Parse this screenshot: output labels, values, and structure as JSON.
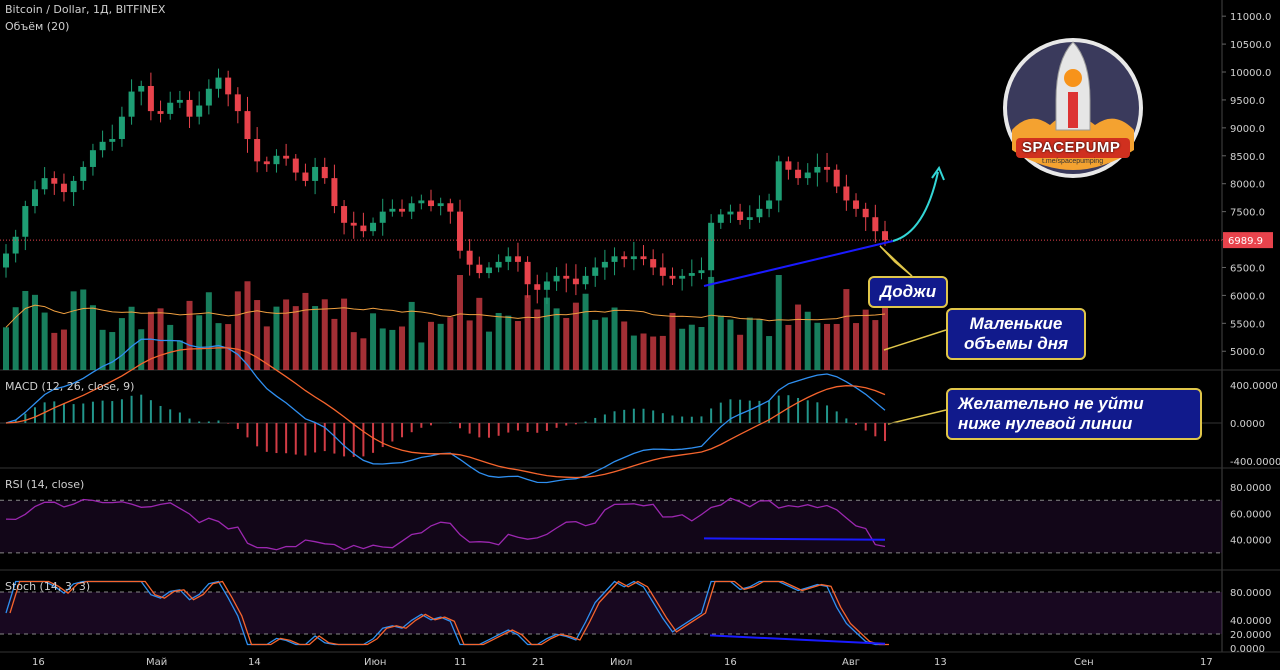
{
  "header": {
    "symbol": "Bitcoin / Dollar, 1Д, BITFINEX",
    "volume_label": "Объём (20)",
    "macd_label": "MACD (12, 26, close, 9)",
    "rsi_label": "RSI (14, close)",
    "stoch_label": "Stoch (14, 3, 3)"
  },
  "price_axis": {
    "ticks": [
      "11000.0",
      "10500.0",
      "10000.0",
      "9500.0",
      "9000.0",
      "8500.0",
      "8000.0",
      "7500.0",
      "7000.0",
      "6500.0",
      "6000.0",
      "5500.0",
      "5000.0"
    ],
    "current_price": "6989.9"
  },
  "macd_axis": {
    "ticks": [
      "400.0000",
      "0.0000",
      "-400.0000"
    ]
  },
  "rsi_axis": {
    "ticks": [
      "80.0000",
      "60.0000",
      "40.0000"
    ]
  },
  "stoch_axis": {
    "ticks": [
      "80.0000",
      "40.0000",
      "20.0000",
      "0.0000"
    ]
  },
  "time_axis": {
    "ticks": [
      "16",
      "Май",
      "14",
      "Июн",
      "11",
      "21",
      "Июл",
      "16",
      "Авг",
      "13",
      "Сен",
      "17"
    ]
  },
  "callouts": {
    "doji": "Доджи",
    "volume_1": "Маленькие",
    "volume_2": "объемы дня",
    "macd_1": "Желательно не уйти",
    "macd_2": "ниже нулевой линии"
  },
  "logo": {
    "title": "SPACEPUMP",
    "subtitle": "t.me/spacepumping"
  },
  "colors": {
    "up": "#1e9e74",
    "down": "#e8434c",
    "macd": "#2f8ff0",
    "signal": "#f5642d",
    "rsi": "#9c27b0",
    "trend": "#1a1aff",
    "arrow": "#33d6d6"
  },
  "chart_data": {
    "type": "candlestick",
    "symbol": "Bitcoin / Dollar",
    "timeframe": "1Д",
    "exchange": "BITFINEX",
    "close_series": [
      6750,
      7050,
      7600,
      7900,
      8100,
      8000,
      7850,
      8050,
      8300,
      8600,
      8750,
      8800,
      9200,
      9650,
      9750,
      9300,
      9250,
      9450,
      9500,
      9200,
      9400,
      9700,
      9900,
      9600,
      9300,
      8800,
      8400,
      8350,
      8500,
      8450,
      8200,
      8050,
      8300,
      8100,
      7600,
      7300,
      7250,
      7150,
      7300,
      7500,
      7550,
      7500,
      7650,
      7700,
      7600,
      7650,
      7500,
      6800,
      6550,
      6400,
      6500,
      6600,
      6700,
      6600,
      6200,
      6100,
      6250,
      6350,
      6300,
      6200,
      6350,
      6500,
      6600,
      6700,
      6650,
      6700,
      6650,
      6500,
      6350,
      6300,
      6350,
      6400,
      6450,
      7300,
      7450,
      7500,
      7350,
      7400,
      7550,
      7700,
      8400,
      8250,
      8100,
      8200,
      8300,
      8250,
      7950,
      7700,
      7550,
      7400,
      7150,
      6990
    ],
    "current_price": 6989.9,
    "ylim": [
      4700,
      11200
    ],
    "rsi_range": [
      20,
      90
    ],
    "stoch_range": [
      0,
      100
    ]
  }
}
